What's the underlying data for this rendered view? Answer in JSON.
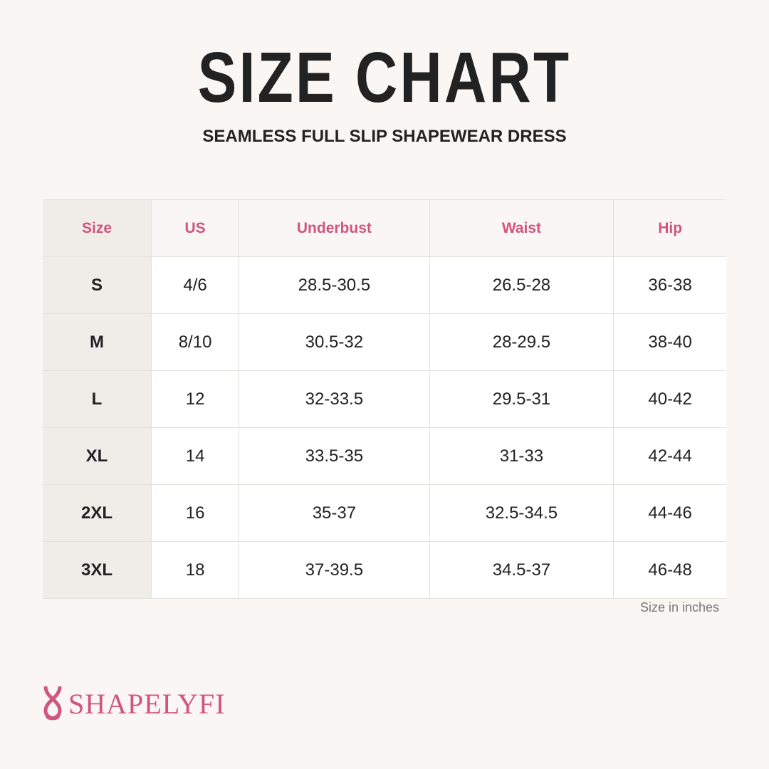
{
  "header": {
    "title": "SIZE CHART",
    "subtitle": "SEAMLESS FULL SLIP SHAPEWEAR DRESS"
  },
  "table": {
    "columns": [
      "Size",
      "US",
      "Underbust",
      "Waist",
      "Hip"
    ],
    "rows": [
      [
        "S",
        "4/6",
        "28.5-30.5",
        "26.5-28",
        "36-38"
      ],
      [
        "M",
        "8/10",
        "30.5-32",
        "28-29.5",
        "38-40"
      ],
      [
        "L",
        "12",
        "32-33.5",
        "29.5-31",
        "40-42"
      ],
      [
        "XL",
        "14",
        "33.5-35",
        "31-33",
        "42-44"
      ],
      [
        "2XL",
        "16",
        "35-37",
        "32.5-34.5",
        "44-46"
      ],
      [
        "3XL",
        "18",
        "37-39.5",
        "34.5-37",
        "46-48"
      ]
    ]
  },
  "note": "Size in inches",
  "brand": "SHAPELYFI"
}
